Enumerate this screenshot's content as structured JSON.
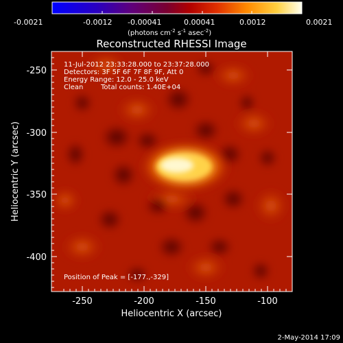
{
  "colorbar": {
    "ticks": [
      "-0.0021",
      "-0.0012",
      "-0.00041",
      "0.00041",
      "0.0012",
      "0.0021"
    ],
    "units": {
      "photons": "(photons cm",
      "exp_neg2_a": "-2",
      "s": " s",
      "exp_neg1": "-1",
      "asec": " asec",
      "exp_neg2_b": "-2",
      "close": ")"
    }
  },
  "title": "Reconstructed RHESSI Image",
  "annotations": {
    "time_range": "11-Jul-2012 23:33:28.000 to 23:37:28.000",
    "detectors": "Detectors: 3F 5F 6F 7F 8F 9F, Att 0",
    "energy_range": "Energy Range: 12.0 - 25.0 keV",
    "algorithm": "Clean",
    "total_counts": "Total counts: 1.40E+04",
    "peak_position": "Position of Peak = [-177.,-329]"
  },
  "axes": {
    "x_label": "Heliocentric X (arcsec)",
    "y_label": "Heliocentric Y (arcsec)",
    "x_ticks": [
      "-250",
      "-200",
      "-150",
      "-100"
    ],
    "y_ticks": [
      "-250",
      "-300",
      "-350",
      "-400"
    ],
    "x_range": [
      -273,
      -80
    ],
    "y_range": [
      -428,
      -235
    ]
  },
  "footer": {
    "timestamp": "2-May-2014 17:09"
  },
  "colors": {
    "background": "#000000",
    "foreground": "#ffffff",
    "source_core": "#fff8d0"
  }
}
